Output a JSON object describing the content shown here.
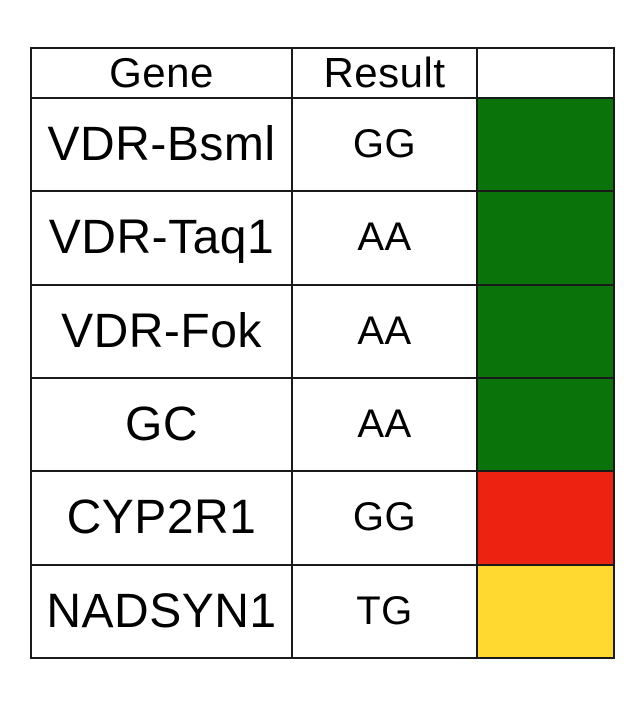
{
  "page": {
    "background": "#ffffff"
  },
  "table": {
    "columns": [
      {
        "label": "Gene"
      },
      {
        "label": "Result"
      },
      {
        "label": ""
      }
    ],
    "rows": [
      {
        "gene": "VDR-Bsml",
        "result": "GG",
        "status": "green",
        "status_color": "#0a740a"
      },
      {
        "gene": "VDR-Taq1",
        "result": "AA",
        "status": "green",
        "status_color": "#0a740a"
      },
      {
        "gene": "VDR-Fok",
        "result": "AA",
        "status": "green",
        "status_color": "#0a740a"
      },
      {
        "gene": "GC",
        "result": "AA",
        "status": "green",
        "status_color": "#0a740a"
      },
      {
        "gene": "CYP2R1",
        "result": "GG",
        "status": "red",
        "status_color": "#ee2211"
      },
      {
        "gene": "NADSYN1",
        "result": "TG",
        "status": "yellow",
        "status_color": "#ffd930"
      }
    ],
    "status_colors": {
      "green": "#0a740a",
      "red": "#ee2211",
      "yellow": "#ffd930"
    }
  }
}
